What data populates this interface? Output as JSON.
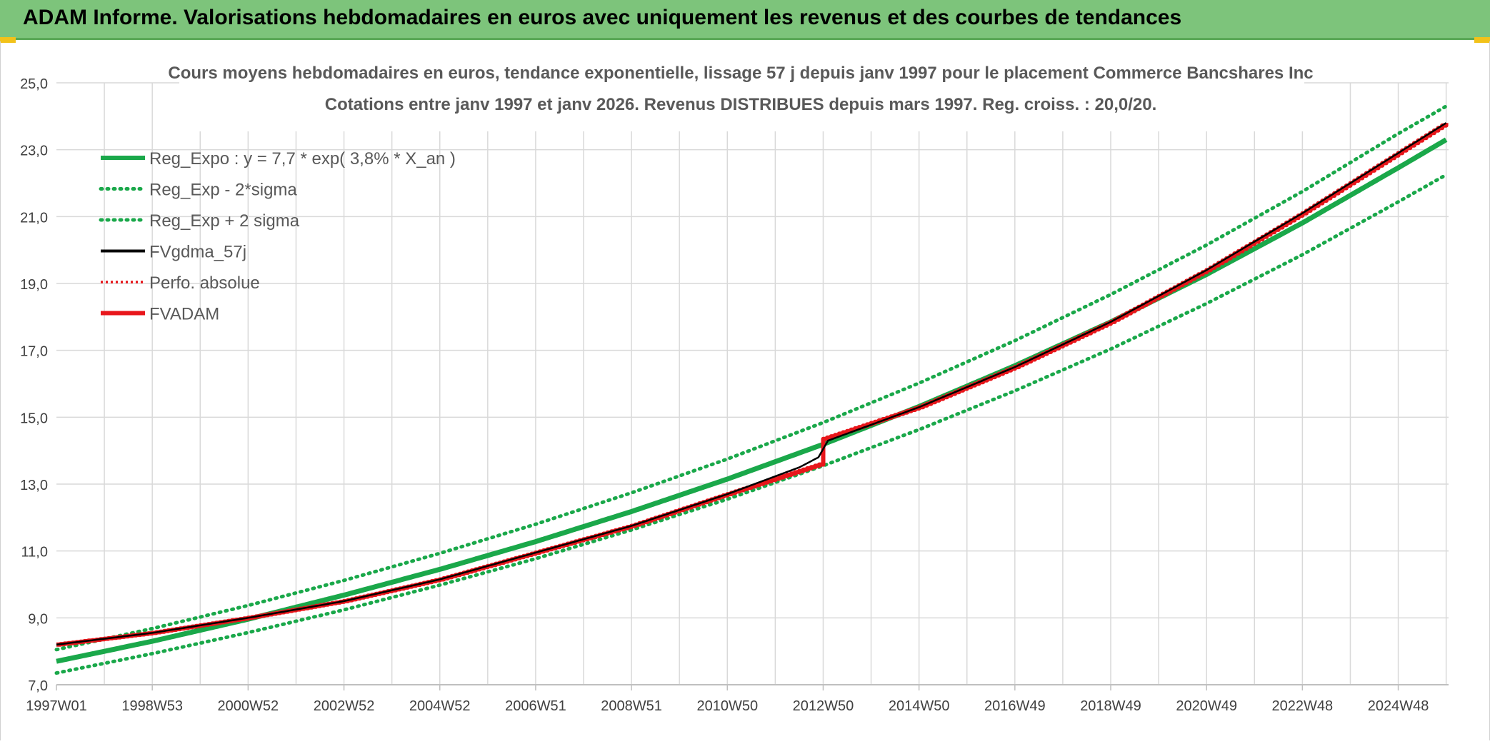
{
  "header": {
    "title": "ADAM Informe. Valorisations hebdomadaires en euros avec uniquement les revenus et des courbes de tendances"
  },
  "colors": {
    "header_bg": "#7dc47b",
    "trend": "#1aa84a",
    "fvgdma": "#000000",
    "fvadam": "#e8161b",
    "grid": "#d9d9d9"
  },
  "chart_data": {
    "type": "line",
    "title": "Cours moyens hebdomadaires en euros, tendance exponentielle, lissage 57 j depuis janv 1997 pour le placement Commerce Bancshares Inc",
    "subtitle": "Cotations entre janv 1997 et janv 2026. Revenus DISTRIBUES depuis mars 1997. Reg. croiss. : 20,0/20.",
    "xlabel": "",
    "ylabel": "",
    "x_range": [
      1997.0,
      2026.05
    ],
    "ylim": [
      7.0,
      25.0
    ],
    "y_ticks": [
      "7,0",
      "9,0",
      "11,0",
      "13,0",
      "15,0",
      "17,0",
      "19,0",
      "21,0",
      "23,0",
      "25,0"
    ],
    "x_ticks": [
      {
        "label": "1997W01",
        "x": 1997.0
      },
      {
        "label": "1998W53",
        "x": 1999.0
      },
      {
        "label": "2000W52",
        "x": 2001.0
      },
      {
        "label": "2002W52",
        "x": 2003.0
      },
      {
        "label": "2004W52",
        "x": 2005.0
      },
      {
        "label": "2006W51",
        "x": 2007.0
      },
      {
        "label": "2008W51",
        "x": 2009.0
      },
      {
        "label": "2010W50",
        "x": 2011.0
      },
      {
        "label": "2012W50",
        "x": 2013.0
      },
      {
        "label": "2014W50",
        "x": 2015.0
      },
      {
        "label": "2016W49",
        "x": 2017.0
      },
      {
        "label": "2018W49",
        "x": 2019.0
      },
      {
        "label": "2020W49",
        "x": 2021.0
      },
      {
        "label": "2022W48",
        "x": 2023.0
      },
      {
        "label": "2024W48",
        "x": 2025.0
      }
    ],
    "grid": true,
    "legend_position": "top-left",
    "series": [
      {
        "name": "Reg_Expo : y = 7,7 * exp( 3,8% *  X_an )",
        "style": "solid-thick",
        "color": "#1aa84a",
        "x": [
          1997,
          1999,
          2001,
          2003,
          2005,
          2007,
          2009,
          2011,
          2013,
          2015,
          2017,
          2019,
          2021,
          2023,
          2025,
          2026
        ],
        "y": [
          7.7,
          8.3,
          8.96,
          9.68,
          10.45,
          11.28,
          12.18,
          13.15,
          14.19,
          15.32,
          16.54,
          17.85,
          19.27,
          20.81,
          22.46,
          23.3
        ]
      },
      {
        "name": "Reg_Exp - 2*sigma",
        "style": "dotted",
        "color": "#1aa84a",
        "x": [
          1997,
          1999,
          2001,
          2003,
          2005,
          2007,
          2009,
          2011,
          2013,
          2015,
          2017,
          2019,
          2021,
          2023,
          2025,
          2026
        ],
        "y": [
          7.35,
          7.93,
          8.56,
          9.24,
          9.98,
          10.77,
          11.63,
          12.55,
          13.55,
          14.63,
          15.79,
          17.04,
          18.4,
          19.86,
          21.44,
          22.25
        ]
      },
      {
        "name": "Reg_Exp + 2 sigma",
        "style": "dotted",
        "color": "#1aa84a",
        "x": [
          1997,
          1999,
          2001,
          2003,
          2005,
          2007,
          2009,
          2011,
          2013,
          2015,
          2017,
          2019,
          2021,
          2023,
          2025,
          2026
        ],
        "y": [
          8.05,
          8.68,
          9.37,
          10.12,
          10.93,
          11.8,
          12.74,
          13.75,
          14.84,
          16.02,
          17.29,
          18.67,
          20.15,
          21.75,
          23.48,
          24.3
        ]
      },
      {
        "name": "FVgdma_57j",
        "style": "solid-thin",
        "color": "#000000",
        "x": [
          1997,
          1999,
          2001,
          2003,
          2005,
          2007,
          2009,
          2011,
          2012.5,
          2012.9,
          2013.1,
          2015,
          2017,
          2019,
          2021,
          2023,
          2025,
          2026
        ],
        "y": [
          8.2,
          8.55,
          9.0,
          9.5,
          10.15,
          10.95,
          11.75,
          12.7,
          13.5,
          13.8,
          14.3,
          15.3,
          16.5,
          17.85,
          19.4,
          21.1,
          22.9,
          23.8
        ]
      },
      {
        "name": "Perfo. absolue",
        "style": "dotted",
        "color": "#e8161b",
        "x": [
          1997,
          1999,
          2001,
          2003,
          2005,
          2007,
          2009,
          2011,
          2012.95,
          2013.0,
          2015,
          2017,
          2019,
          2021,
          2023,
          2025,
          2026
        ],
        "y": [
          8.2,
          8.55,
          9.0,
          9.5,
          10.15,
          10.95,
          11.75,
          12.7,
          13.6,
          14.35,
          15.3,
          16.5,
          17.85,
          19.4,
          21.1,
          22.9,
          23.8
        ]
      },
      {
        "name": "FVADAM",
        "style": "solid-thick-step",
        "color": "#e8161b",
        "x": [
          1997,
          1999,
          2001,
          2003,
          2005,
          2007,
          2009,
          2011,
          2012.95,
          2013.0,
          2015,
          2017,
          2019,
          2021,
          2023,
          2025,
          2026
        ],
        "y": [
          8.2,
          8.55,
          9.0,
          9.5,
          10.15,
          10.95,
          11.75,
          12.7,
          13.6,
          14.35,
          15.3,
          16.5,
          17.85,
          19.4,
          21.1,
          22.9,
          23.8
        ]
      }
    ]
  }
}
